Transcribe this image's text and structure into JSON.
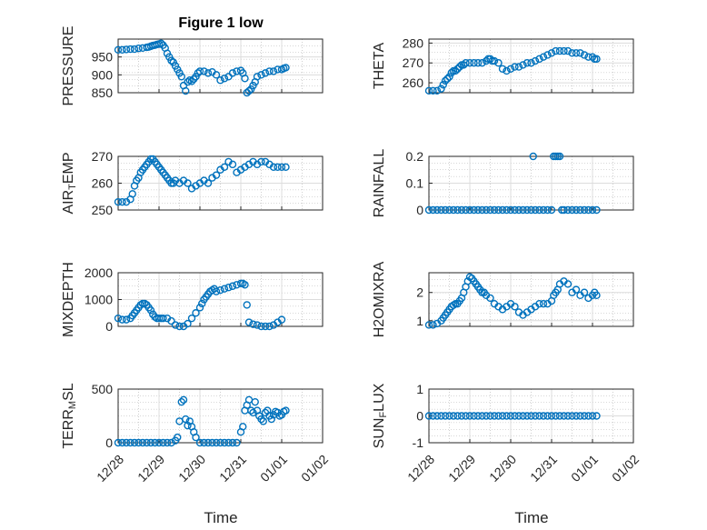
{
  "title": "Figure 1 low",
  "colors": {
    "marker": "#0072BD",
    "axis": "#262626",
    "grid": "#b0b0b0"
  },
  "chart_data": [
    {
      "type": "scatter",
      "ylabel": "PRESSURE",
      "ylim": [
        850,
        1000
      ],
      "yticks": [
        850,
        900,
        950
      ],
      "xlim": [
        0,
        5
      ],
      "xticks": [],
      "grid": true,
      "x": [
        0.0,
        0.1,
        0.2,
        0.3,
        0.4,
        0.5,
        0.6,
        0.7,
        0.75,
        0.8,
        0.85,
        0.9,
        0.95,
        1.0,
        1.05,
        1.1,
        1.15,
        1.2,
        1.25,
        1.3,
        1.35,
        1.4,
        1.45,
        1.5,
        1.55,
        1.6,
        1.65,
        1.7,
        1.75,
        1.8,
        1.85,
        1.9,
        1.95,
        2.0,
        2.1,
        2.2,
        2.3,
        2.4,
        2.5,
        2.6,
        2.7,
        2.8,
        2.9,
        3.0,
        3.05,
        3.1,
        3.15,
        3.2,
        3.25,
        3.3,
        3.35,
        3.4,
        3.5,
        3.6,
        3.7,
        3.8,
        3.9,
        4.0,
        4.05,
        4.1
      ],
      "y": [
        970,
        970,
        971,
        972,
        972,
        974,
        975,
        977,
        978,
        980,
        982,
        983,
        985,
        986,
        988,
        983,
        975,
        960,
        950,
        940,
        935,
        925,
        915,
        905,
        895,
        870,
        855,
        880,
        885,
        882,
        888,
        895,
        905,
        910,
        910,
        905,
        908,
        900,
        885,
        890,
        895,
        905,
        910,
        912,
        905,
        890,
        850,
        855,
        860,
        870,
        880,
        895,
        900,
        905,
        910,
        910,
        915,
        915,
        918,
        920
      ]
    },
    {
      "type": "scatter",
      "ylabel": "THETA",
      "ylim": [
        255,
        282
      ],
      "yticks": [
        260,
        270,
        280
      ],
      "xlim": [
        0,
        5
      ],
      "xticks": [],
      "grid": true,
      "x": [
        0.0,
        0.1,
        0.2,
        0.3,
        0.35,
        0.4,
        0.45,
        0.5,
        0.55,
        0.6,
        0.65,
        0.7,
        0.75,
        0.8,
        0.85,
        0.9,
        1.0,
        1.1,
        1.2,
        1.3,
        1.4,
        1.45,
        1.5,
        1.55,
        1.6,
        1.7,
        1.8,
        1.9,
        2.0,
        2.1,
        2.2,
        2.3,
        2.4,
        2.5,
        2.6,
        2.7,
        2.8,
        2.9,
        3.0,
        3.1,
        3.2,
        3.3,
        3.4,
        3.5,
        3.6,
        3.7,
        3.8,
        3.9,
        4.0,
        4.05,
        4.1
      ],
      "y": [
        256,
        256,
        256,
        257,
        259,
        261,
        262,
        263,
        265,
        266,
        266,
        267,
        268,
        269,
        269,
        270,
        270,
        270,
        270,
        270,
        271,
        272,
        272,
        271,
        271,
        270,
        267,
        266,
        267,
        268,
        268,
        269,
        270,
        270,
        271,
        272,
        273,
        274,
        275,
        276,
        276,
        276,
        276,
        275,
        275,
        275,
        274,
        273,
        273,
        272,
        272
      ]
    },
    {
      "type": "scatter",
      "ylabel": "AIR_TEMP",
      "ylim": [
        250,
        270
      ],
      "yticks": [
        250,
        260,
        270
      ],
      "xlim": [
        0,
        5
      ],
      "xticks": [],
      "grid": true,
      "x": [
        0.0,
        0.1,
        0.2,
        0.3,
        0.35,
        0.4,
        0.45,
        0.5,
        0.55,
        0.6,
        0.65,
        0.7,
        0.75,
        0.8,
        0.85,
        0.9,
        0.95,
        1.0,
        1.05,
        1.1,
        1.15,
        1.2,
        1.25,
        1.3,
        1.35,
        1.4,
        1.5,
        1.6,
        1.7,
        1.8,
        1.9,
        2.0,
        2.1,
        2.2,
        2.3,
        2.4,
        2.5,
        2.6,
        2.7,
        2.8,
        2.9,
        3.0,
        3.1,
        3.2,
        3.3,
        3.4,
        3.5,
        3.6,
        3.7,
        3.8,
        3.9,
        4.0,
        4.1
      ],
      "y": [
        253,
        253,
        253,
        254,
        256,
        259,
        261,
        262,
        264,
        265,
        266,
        267,
        268,
        269,
        269,
        268,
        267,
        266,
        265,
        264,
        263,
        262,
        261,
        260,
        260,
        261,
        260,
        261,
        260,
        258,
        259,
        260,
        261,
        260,
        262,
        263,
        265,
        266,
        268,
        267,
        264,
        265,
        266,
        267,
        268,
        267,
        268,
        268,
        267,
        266,
        266,
        266,
        266
      ]
    },
    {
      "type": "scatter",
      "ylabel": "RAINFALL",
      "ylim": [
        0,
        0.2
      ],
      "yticks": [
        0,
        0.1,
        0.2
      ],
      "xlim": [
        0,
        5
      ],
      "xticks": [],
      "grid": true,
      "x": [
        0.0,
        0.1,
        0.2,
        0.3,
        0.4,
        0.5,
        0.6,
        0.7,
        0.8,
        0.9,
        1.0,
        1.1,
        1.2,
        1.3,
        1.4,
        1.5,
        1.6,
        1.7,
        1.8,
        1.9,
        2.0,
        2.1,
        2.2,
        2.3,
        2.4,
        2.5,
        2.55,
        2.6,
        2.7,
        2.8,
        2.9,
        3.0,
        3.05,
        3.1,
        3.15,
        3.2,
        3.25,
        3.3,
        3.4,
        3.5,
        3.6,
        3.7,
        3.8,
        3.9,
        4.0,
        4.1
      ],
      "y": [
        0,
        0,
        0,
        0,
        0,
        0,
        0,
        0,
        0,
        0,
        0,
        0,
        0,
        0,
        0,
        0,
        0,
        0,
        0,
        0,
        0,
        0,
        0,
        0,
        0,
        0,
        0.2,
        0,
        0,
        0,
        0,
        0,
        0.2,
        0.2,
        0.2,
        0.2,
        0,
        0,
        0,
        0,
        0,
        0,
        0,
        0,
        0,
        0
      ]
    },
    {
      "type": "scatter",
      "ylabel": "MIXDEPTH",
      "ylim": [
        0,
        2000
      ],
      "yticks": [
        0,
        1000,
        2000
      ],
      "xlim": [
        0,
        5
      ],
      "xticks": [],
      "grid": true,
      "x": [
        0.0,
        0.1,
        0.2,
        0.3,
        0.35,
        0.4,
        0.45,
        0.5,
        0.55,
        0.6,
        0.65,
        0.7,
        0.75,
        0.8,
        0.85,
        0.9,
        0.95,
        1.0,
        1.05,
        1.1,
        1.2,
        1.3,
        1.4,
        1.5,
        1.6,
        1.7,
        1.8,
        1.9,
        2.0,
        2.05,
        2.1,
        2.15,
        2.2,
        2.25,
        2.3,
        2.35,
        2.4,
        2.5,
        2.6,
        2.7,
        2.8,
        2.9,
        3.0,
        3.05,
        3.1,
        3.15,
        3.2,
        3.3,
        3.4,
        3.5,
        3.6,
        3.7,
        3.8,
        3.9,
        4.0
      ],
      "y": [
        300,
        250,
        250,
        300,
        400,
        500,
        600,
        700,
        800,
        850,
        850,
        800,
        700,
        600,
        450,
        350,
        300,
        300,
        300,
        300,
        300,
        200,
        50,
        0,
        0,
        100,
        300,
        500,
        700,
        850,
        1000,
        1100,
        1200,
        1300,
        1350,
        1400,
        1300,
        1350,
        1400,
        1450,
        1500,
        1550,
        1600,
        1600,
        1550,
        800,
        150,
        80,
        50,
        0,
        0,
        0,
        50,
        150,
        250
      ]
    },
    {
      "type": "scatter",
      "ylabel": "H2OMIXRA",
      "ylim": [
        0.8,
        2.7
      ],
      "yticks": [
        1,
        2
      ],
      "xlim": [
        0,
        5
      ],
      "xticks": [],
      "grid": true,
      "x": [
        0.0,
        0.1,
        0.2,
        0.3,
        0.35,
        0.4,
        0.45,
        0.5,
        0.55,
        0.6,
        0.65,
        0.7,
        0.75,
        0.8,
        0.85,
        0.9,
        0.95,
        1.0,
        1.05,
        1.1,
        1.15,
        1.2,
        1.25,
        1.3,
        1.35,
        1.4,
        1.5,
        1.6,
        1.7,
        1.8,
        1.9,
        2.0,
        2.1,
        2.2,
        2.3,
        2.4,
        2.5,
        2.6,
        2.7,
        2.8,
        2.9,
        3.0,
        3.05,
        3.1,
        3.15,
        3.2,
        3.3,
        3.4,
        3.5,
        3.6,
        3.7,
        3.8,
        3.9,
        4.0,
        4.05,
        4.1
      ],
      "y": [
        0.85,
        0.85,
        0.9,
        1.0,
        1.1,
        1.2,
        1.3,
        1.4,
        1.5,
        1.55,
        1.6,
        1.6,
        1.7,
        1.8,
        2.0,
        2.2,
        2.4,
        2.55,
        2.5,
        2.4,
        2.3,
        2.2,
        2.1,
        2.0,
        2.0,
        1.9,
        1.8,
        1.6,
        1.5,
        1.4,
        1.5,
        1.6,
        1.5,
        1.3,
        1.2,
        1.3,
        1.4,
        1.5,
        1.6,
        1.6,
        1.6,
        1.7,
        1.9,
        2.0,
        2.1,
        2.3,
        2.4,
        2.3,
        2.0,
        2.1,
        1.9,
        2.0,
        1.8,
        1.9,
        2.0,
        1.9
      ]
    },
    {
      "type": "scatter",
      "ylabel": "TERR_MSL",
      "ylim": [
        0,
        500
      ],
      "yticks": [
        0,
        500
      ],
      "xlim": [
        0,
        5
      ],
      "xticks": [],
      "grid": true,
      "x": [
        0.0,
        0.1,
        0.2,
        0.3,
        0.4,
        0.5,
        0.6,
        0.7,
        0.8,
        0.9,
        1.0,
        1.1,
        1.2,
        1.3,
        1.4,
        1.45,
        1.5,
        1.55,
        1.6,
        1.65,
        1.7,
        1.75,
        1.8,
        1.85,
        1.9,
        2.0,
        2.1,
        2.2,
        2.3,
        2.4,
        2.5,
        2.6,
        2.7,
        2.8,
        2.9,
        3.0,
        3.05,
        3.1,
        3.15,
        3.2,
        3.25,
        3.3,
        3.35,
        3.4,
        3.45,
        3.5,
        3.55,
        3.6,
        3.65,
        3.7,
        3.75,
        3.8,
        3.85,
        3.9,
        3.95,
        4.0,
        4.05,
        4.1
      ],
      "y": [
        0,
        0,
        0,
        0,
        0,
        0,
        0,
        0,
        0,
        0,
        0,
        0,
        0,
        0,
        20,
        50,
        200,
        380,
        400,
        220,
        160,
        200,
        150,
        100,
        50,
        0,
        0,
        0,
        0,
        0,
        0,
        0,
        0,
        0,
        0,
        100,
        150,
        300,
        350,
        400,
        300,
        280,
        380,
        300,
        250,
        220,
        200,
        280,
        300,
        250,
        220,
        260,
        290,
        280,
        250,
        260,
        290,
        300
      ]
    },
    {
      "type": "scatter",
      "ylabel": "SUN_FLUX",
      "ylim": [
        -1,
        1
      ],
      "yticks": [
        -1,
        0,
        1
      ],
      "xlim": [
        0,
        5
      ],
      "xticks": [
        0,
        1,
        2,
        3,
        4,
        5
      ],
      "xticklabels": [
        "12/28",
        "12/29",
        "12/30",
        "12/31",
        "01/01",
        "01/02"
      ],
      "grid": true,
      "x": [
        0.0,
        0.1,
        0.2,
        0.3,
        0.4,
        0.5,
        0.6,
        0.7,
        0.8,
        0.9,
        1.0,
        1.1,
        1.2,
        1.3,
        1.4,
        1.5,
        1.6,
        1.7,
        1.8,
        1.9,
        2.0,
        2.1,
        2.2,
        2.3,
        2.4,
        2.5,
        2.6,
        2.7,
        2.8,
        2.9,
        3.0,
        3.1,
        3.2,
        3.3,
        3.4,
        3.5,
        3.6,
        3.7,
        3.8,
        3.9,
        4.0,
        4.1
      ],
      "y": [
        0,
        0,
        0,
        0,
        0,
        0,
        0,
        0,
        0,
        0,
        0,
        0,
        0,
        0,
        0,
        0,
        0,
        0,
        0,
        0,
        0,
        0,
        0,
        0,
        0,
        0,
        0,
        0,
        0,
        0,
        0,
        0,
        0,
        0,
        0,
        0,
        0,
        0,
        0,
        0,
        0,
        0
      ]
    }
  ],
  "bottom_axis": {
    "xticklabels": [
      "12/28",
      "12/29",
      "12/30",
      "12/31",
      "01/01",
      "01/02"
    ],
    "xlabel": "Time"
  }
}
